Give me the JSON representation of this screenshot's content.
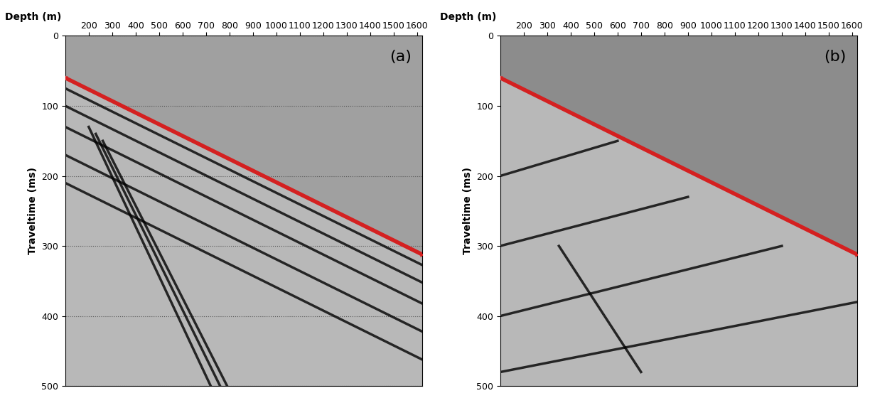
{
  "chart_data": [
    {
      "type": "line",
      "title": "(a)",
      "xlabel": "Depth (m)",
      "ylabel": "Traveltime (ms)",
      "xlim": [
        100,
        1620
      ],
      "ylim": [
        500,
        0
      ],
      "xticks": [
        200,
        300,
        400,
        500,
        600,
        700,
        800,
        900,
        1000,
        1100,
        1200,
        1300,
        1400,
        1500,
        1600
      ],
      "yticks": [
        0,
        100,
        200,
        300,
        400,
        500
      ],
      "grid": true,
      "series": [
        {
          "color": "#d42020",
          "marker": "x",
          "line_style": "solid",
          "x": [
            100,
            1620
          ],
          "values": [
            60,
            312
          ]
        },
        {
          "color": "#000000",
          "line_style": "solid",
          "x": [
            100,
            1620
          ],
          "values": [
            75,
            327
          ]
        },
        {
          "color": "#000000",
          "line_style": "solid",
          "x": [
            100,
            1620
          ],
          "values": [
            100,
            352
          ]
        },
        {
          "color": "#000000",
          "line_style": "solid",
          "x": [
            100,
            1620
          ],
          "values": [
            130,
            382
          ]
        },
        {
          "color": "#000000",
          "line_style": "solid",
          "x": [
            100,
            1620
          ],
          "values": [
            170,
            422
          ]
        },
        {
          "color": "#000000",
          "line_style": "solid",
          "x": [
            100,
            1620
          ],
          "values": [
            210,
            462
          ]
        },
        {
          "color": "#000000",
          "line_style": "solid",
          "x": [
            200,
            720
          ],
          "values": [
            130,
            500
          ]
        },
        {
          "color": "#000000",
          "line_style": "solid",
          "x": [
            230,
            760
          ],
          "values": [
            140,
            500
          ]
        },
        {
          "color": "#000000",
          "line_style": "solid",
          "x": [
            260,
            790
          ],
          "values": [
            150,
            500
          ]
        }
      ]
    },
    {
      "type": "line",
      "title": "(b)",
      "xlabel": "Depth (m)",
      "ylabel": "Traveltime (ms)",
      "xlim": [
        100,
        1620
      ],
      "ylim": [
        500,
        0
      ],
      "xticks": [
        200,
        300,
        400,
        500,
        600,
        700,
        800,
        900,
        1000,
        1100,
        1200,
        1300,
        1400,
        1500,
        1600
      ],
      "yticks": [
        0,
        100,
        200,
        300,
        400,
        500
      ],
      "grid": false,
      "series": [
        {
          "color": "#d42020",
          "marker": "x",
          "line_style": "solid",
          "x": [
            100,
            1620
          ],
          "values": [
            60,
            312
          ]
        },
        {
          "color": "#000000",
          "line_style": "solid",
          "x": [
            100,
            600
          ],
          "values": [
            200,
            150
          ]
        },
        {
          "color": "#000000",
          "line_style": "solid",
          "x": [
            100,
            900
          ],
          "values": [
            300,
            230
          ]
        },
        {
          "color": "#000000",
          "line_style": "solid",
          "x": [
            100,
            1300
          ],
          "values": [
            400,
            300
          ]
        },
        {
          "color": "#000000",
          "line_style": "solid",
          "x": [
            100,
            1620
          ],
          "values": [
            480,
            380
          ]
        },
        {
          "color": "#000000",
          "line_style": "solid",
          "x": [
            350,
            700
          ],
          "values": [
            300,
            480
          ]
        }
      ]
    }
  ]
}
